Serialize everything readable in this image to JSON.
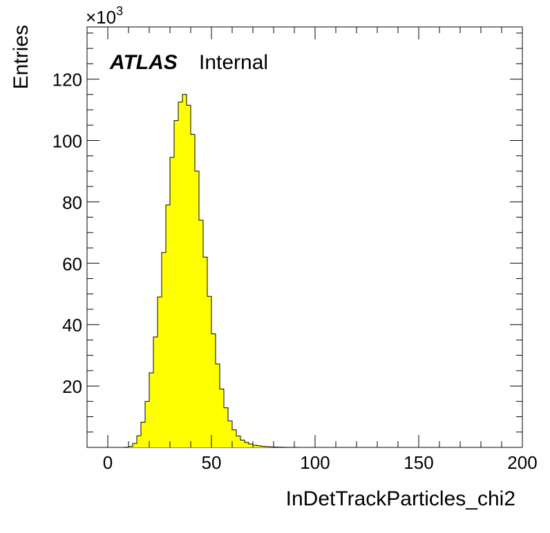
{
  "chart_data": {
    "type": "bar",
    "title": "",
    "xlabel": "InDetTrackParticles_chi2",
    "ylabel": "Entries",
    "y_multiplier_label": "×10",
    "y_multiplier_exp": "3",
    "atlas_label": "ATLAS",
    "atlas_sublabel": "Internal",
    "xlim": [
      -10,
      200
    ],
    "ylim": [
      0,
      137
    ],
    "x_ticks": [
      "0",
      "50",
      "100",
      "150",
      "200"
    ],
    "y_ticks": [
      "20",
      "40",
      "60",
      "80",
      "100",
      "120"
    ],
    "x_tick_values": [
      0,
      50,
      100,
      150,
      200
    ],
    "y_tick_values": [
      20,
      40,
      60,
      80,
      100,
      120
    ],
    "fill_color": "#ffff00",
    "edge_color": "#000000",
    "grid": false,
    "legend": "none",
    "bin_width": 2,
    "bin_start": 0,
    "values": [
      0,
      0,
      0,
      0,
      0.05,
      0.3,
      1.3,
      3.8,
      8.2,
      15.0,
      24.3,
      36.0,
      49.0,
      63.5,
      79.0,
      94.5,
      106.5,
      112.5,
      115.0,
      111.5,
      102.0,
      90.0,
      74.0,
      62.0,
      49.2,
      37.0,
      27.2,
      19.0,
      12.9,
      8.6,
      5.7,
      3.7,
      2.4,
      1.6,
      1.1,
      0.7,
      0.5,
      0.35,
      0.25,
      0.18,
      0.12,
      0.08,
      0.06,
      0.04,
      0.03,
      0.02,
      0.01,
      0.01,
      0.01,
      0.01
    ]
  }
}
